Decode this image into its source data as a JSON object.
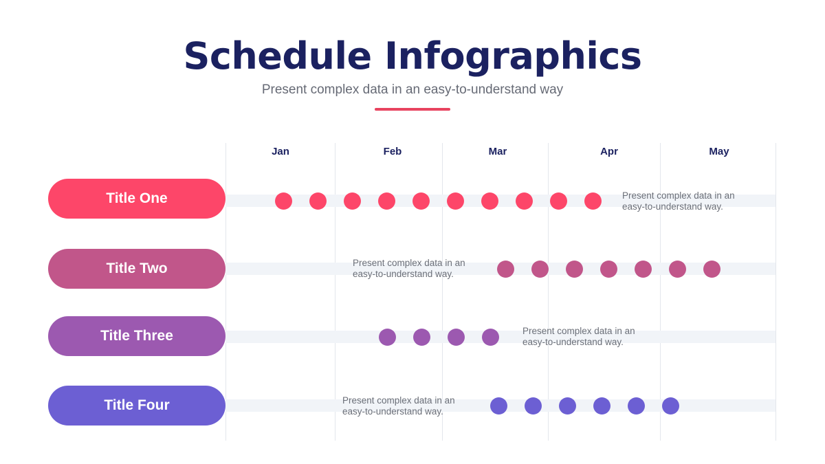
{
  "header": {
    "title": "Schedule Infographics",
    "subtitle": "Present complex data in an easy-to-understand way",
    "accent_color": "#e8435f"
  },
  "months": [
    "Jan",
    "Feb",
    "Mar",
    "Apr",
    "May"
  ],
  "rows": [
    {
      "title": "Title One",
      "color": "#fd4669",
      "dots": 10,
      "desc": "Present complex data in an easy-to-understand way."
    },
    {
      "title": "Title Two",
      "color": "#c1568a",
      "dots": 7,
      "desc": "Present complex data in an easy-to-understand way."
    },
    {
      "title": "Title Three",
      "color": "#9c59b0",
      "dots": 4,
      "desc": "Present complex data in an easy-to-understand way."
    },
    {
      "title": "Title Four",
      "color": "#6c5fd3",
      "dots": 6,
      "desc": "Present complex data in an easy-to-understand way."
    }
  ]
}
